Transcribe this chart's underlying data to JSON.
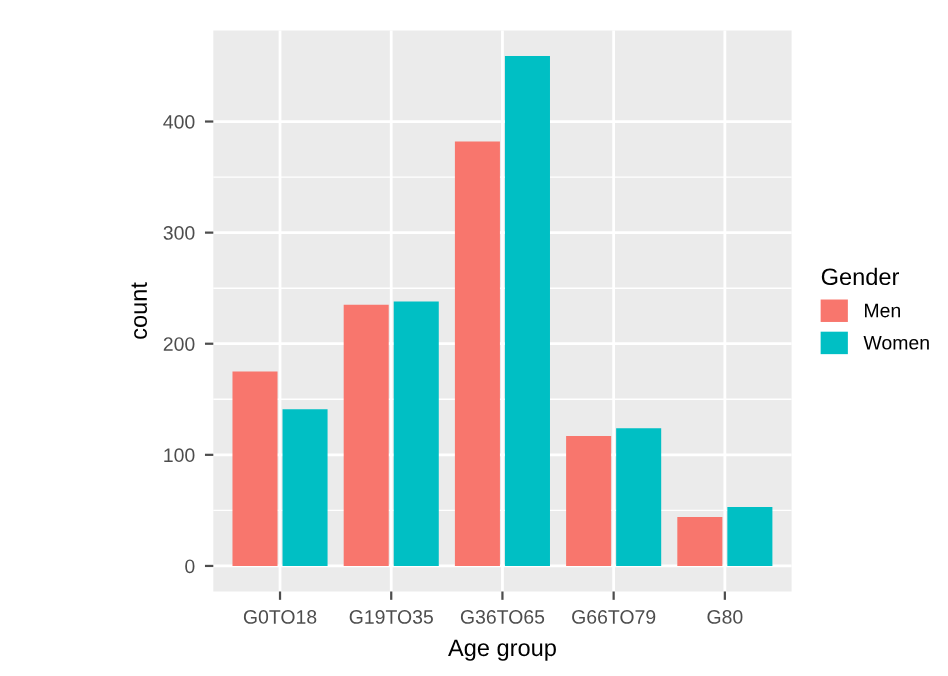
{
  "chart_data": {
    "type": "bar",
    "xlabel": "Age group",
    "ylabel": "count",
    "legend_title": "Gender",
    "categories": [
      "G0TO18",
      "G19TO35",
      "G36TO65",
      "G66TO79",
      "G80"
    ],
    "series": [
      {
        "name": "Men",
        "color": "#f8766d",
        "values": [
          175,
          235,
          382,
          117,
          44
        ]
      },
      {
        "name": "Women",
        "color": "#00bfc4",
        "values": [
          141,
          238,
          459,
          124,
          53
        ]
      }
    ],
    "ylim": [
      -23,
      482
    ],
    "yticks": [
      0,
      100,
      200,
      300,
      400
    ],
    "grid": true,
    "legend": "right"
  }
}
